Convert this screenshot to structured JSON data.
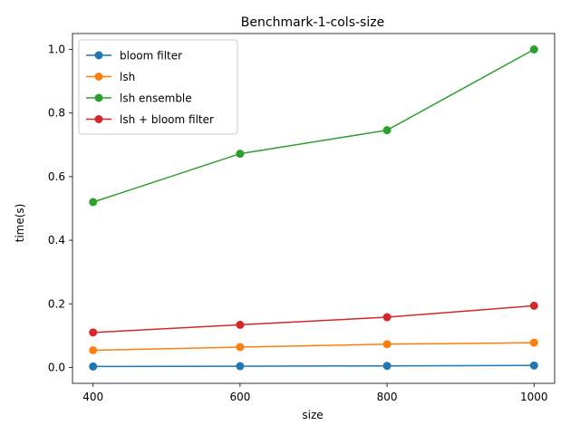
{
  "chart_data": {
    "type": "line",
    "title": "Benchmark-1-cols-size",
    "xlabel": "size",
    "ylabel": "time(s)",
    "x": [
      400,
      600,
      800,
      1000
    ],
    "xticks": [
      400,
      600,
      800,
      1000
    ],
    "yticks": [
      0.0,
      0.2,
      0.4,
      0.6,
      0.8,
      1.0
    ],
    "ytick_labels": [
      "0.0",
      "0.2",
      "0.4",
      "0.6",
      "0.8",
      "1.0"
    ],
    "xlim": [
      372,
      1028
    ],
    "ylim": [
      -0.05,
      1.05
    ],
    "grid": false,
    "legend_position": "upper-left",
    "series": [
      {
        "name": "bloom filter",
        "color": "#1f77b4",
        "values": [
          0.003,
          0.004,
          0.005,
          0.006
        ]
      },
      {
        "name": "lsh",
        "color": "#ff7f0e",
        "values": [
          0.054,
          0.064,
          0.073,
          0.078
        ]
      },
      {
        "name": "lsh ensemble",
        "color": "#2ca02c",
        "values": [
          0.52,
          0.672,
          0.746,
          1.0
        ]
      },
      {
        "name": "lsh + bloom filter",
        "color": "#d62728",
        "values": [
          0.11,
          0.134,
          0.158,
          0.194
        ]
      }
    ]
  }
}
